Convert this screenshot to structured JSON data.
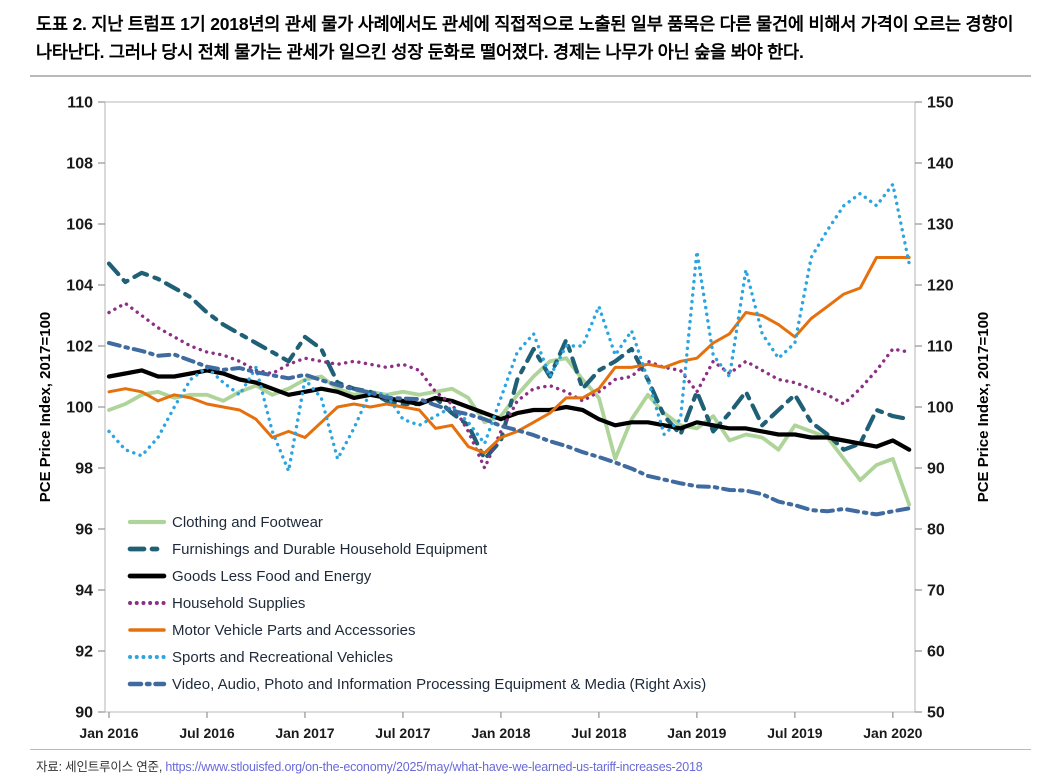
{
  "header": {
    "title": "도표 2. 지난 트럼프 1기 2018년의 관세 물가 사례에서도 관세에 직접적으로 노출된 일부 품목은 다른 물건에 비해서 가격이 오르는 경향이 나타난다. 그러나 당시 전체 물가는 관세가 일으킨 성장 둔화로 떨어졌다. 경제는 나무가 아닌 숲을 봐야 한다."
  },
  "footer": {
    "source_prefix": "자료: 세인트루이스 연준, ",
    "source_url": "https://www.stlouisfed.org/on-the-economy/2025/may/what-have-we-learned-us-tariff-increases-2018"
  },
  "chart_data": {
    "type": "line",
    "title": "",
    "grid": false,
    "legend_position": "inside-bottom-left",
    "left_axis": {
      "label": "PCE Price Index, 2017=100",
      "min": 90,
      "max": 110,
      "tick_step": 2,
      "ticks": [
        90,
        92,
        94,
        96,
        98,
        100,
        102,
        104,
        106,
        108,
        110
      ]
    },
    "right_axis": {
      "label": "PCE Price Index, 2017=100",
      "min": 50,
      "max": 150,
      "tick_step": 10,
      "ticks": [
        50,
        60,
        70,
        80,
        90,
        100,
        110,
        120,
        130,
        140,
        150
      ]
    },
    "x_tick_labels": [
      "Jan 2016",
      "Jul 2016",
      "Jan 2017",
      "Jul 2017",
      "Jan 2018",
      "Jul 2018",
      "Jan 2019",
      "Jul 2019",
      "Jan 2020"
    ],
    "x": [
      "2016-01",
      "2016-02",
      "2016-03",
      "2016-04",
      "2016-05",
      "2016-06",
      "2016-07",
      "2016-08",
      "2016-09",
      "2016-10",
      "2016-11",
      "2016-12",
      "2017-01",
      "2017-02",
      "2017-03",
      "2017-04",
      "2017-05",
      "2017-06",
      "2017-07",
      "2017-08",
      "2017-09",
      "2017-10",
      "2017-11",
      "2017-12",
      "2018-01",
      "2018-02",
      "2018-03",
      "2018-04",
      "2018-05",
      "2018-06",
      "2018-07",
      "2018-08",
      "2018-09",
      "2018-10",
      "2018-11",
      "2018-12",
      "2019-01",
      "2019-02",
      "2019-03",
      "2019-04",
      "2019-05",
      "2019-06",
      "2019-07",
      "2019-08",
      "2019-09",
      "2019-10",
      "2019-11",
      "2019-12",
      "2020-01",
      "2020-02"
    ],
    "series": [
      {
        "name": "Clothing and Footwear",
        "axis": "left",
        "color": "#aed49a",
        "style": "solid",
        "width": 3.8,
        "values": [
          99.9,
          100.1,
          100.4,
          100.5,
          100.3,
          100.4,
          100.4,
          100.2,
          100.5,
          100.7,
          100.4,
          100.6,
          100.9,
          101.0,
          100.6,
          100.4,
          100.5,
          100.4,
          100.5,
          100.4,
          100.5,
          100.6,
          100.3,
          99.5,
          99.7,
          100.4,
          101.0,
          101.5,
          101.6,
          100.9,
          100.3,
          98.3,
          99.6,
          100.4,
          99.8,
          99.4,
          99.3,
          99.7,
          98.9,
          99.1,
          99.0,
          98.6,
          99.4,
          99.2,
          99.0,
          98.3,
          97.6,
          98.1,
          98.3,
          96.8
        ]
      },
      {
        "name": "Furnishings and Durable Household Equipment",
        "axis": "left",
        "color": "#1f6076",
        "style": "long-dash",
        "width": 4.2,
        "values": [
          104.7,
          104.1,
          104.4,
          104.2,
          103.9,
          103.6,
          103.1,
          102.7,
          102.4,
          102.1,
          101.8,
          101.5,
          102.3,
          101.9,
          100.8,
          100.6,
          100.5,
          100.2,
          100.1,
          100.1,
          100.3,
          99.8,
          99.4,
          98.3,
          98.9,
          100.9,
          101.9,
          101.0,
          102.2,
          100.6,
          101.2,
          101.5,
          101.9,
          100.9,
          99.7,
          99.1,
          100.5,
          99.2,
          99.8,
          100.5,
          99.4,
          99.9,
          100.4,
          99.5,
          99.1,
          98.6,
          98.8,
          99.9,
          99.7,
          99.6
        ]
      },
      {
        "name": "Goods Less Food and Energy",
        "axis": "left",
        "color": "#000000",
        "style": "solid",
        "width": 4.2,
        "values": [
          101.0,
          101.1,
          101.2,
          101.0,
          101.0,
          101.1,
          101.2,
          101.1,
          100.9,
          100.8,
          100.6,
          100.4,
          100.5,
          100.6,
          100.5,
          100.3,
          100.4,
          100.3,
          100.2,
          100.1,
          100.3,
          100.2,
          100.0,
          99.8,
          99.6,
          99.8,
          99.9,
          99.9,
          100.0,
          99.9,
          99.6,
          99.4,
          99.5,
          99.5,
          99.4,
          99.3,
          99.5,
          99.4,
          99.3,
          99.3,
          99.2,
          99.1,
          99.1,
          99.0,
          99.0,
          98.9,
          98.8,
          98.7,
          98.9,
          98.6
        ]
      },
      {
        "name": "Household Supplies",
        "axis": "left",
        "color": "#8e2f86",
        "style": "dotted",
        "width": 3.4,
        "values": [
          103.1,
          103.4,
          103.0,
          102.6,
          102.3,
          102.0,
          101.8,
          101.7,
          101.5,
          101.2,
          101.1,
          101.4,
          101.6,
          101.5,
          101.4,
          101.5,
          101.4,
          101.3,
          101.4,
          101.2,
          100.5,
          100.1,
          99.2,
          98.0,
          99.2,
          100.2,
          100.6,
          100.7,
          100.5,
          100.2,
          100.5,
          100.9,
          101.0,
          101.5,
          101.3,
          101.2,
          100.5,
          101.5,
          101.1,
          101.5,
          101.2,
          100.9,
          100.8,
          100.6,
          100.4,
          100.1,
          100.6,
          101.2,
          101.9,
          101.8
        ]
      },
      {
        "name": "Motor Vehicle Parts and Accessories",
        "axis": "left",
        "color": "#e5710e",
        "style": "solid",
        "width": 3.0,
        "values": [
          100.5,
          100.6,
          100.5,
          100.2,
          100.4,
          100.3,
          100.1,
          100.0,
          99.9,
          99.6,
          99.0,
          99.2,
          99.0,
          99.5,
          100.0,
          100.1,
          100.0,
          100.1,
          100.0,
          99.9,
          99.3,
          99.4,
          98.7,
          98.5,
          99.0,
          99.2,
          99.5,
          99.8,
          100.3,
          100.3,
          100.6,
          101.3,
          101.3,
          101.4,
          101.3,
          101.5,
          101.6,
          102.1,
          102.4,
          103.1,
          103.0,
          102.7,
          102.3,
          102.9,
          103.3,
          103.7,
          103.9,
          104.9,
          104.9,
          104.9
        ]
      },
      {
        "name": "Sports and Recreational Vehicles",
        "axis": "left",
        "color": "#2aa5e0",
        "style": "dotted",
        "width": 3.4,
        "values": [
          99.2,
          98.6,
          98.4,
          99.0,
          100.0,
          100.9,
          101.3,
          100.8,
          100.4,
          101.3,
          99.2,
          97.9,
          100.9,
          100.3,
          98.3,
          99.3,
          100.5,
          100.4,
          99.6,
          99.4,
          99.7,
          100.0,
          99.5,
          98.8,
          100.3,
          101.8,
          102.4,
          101.0,
          102.0,
          102.0,
          103.3,
          101.7,
          102.5,
          100.9,
          99.1,
          99.6,
          105.1,
          101.7,
          101.0,
          104.5,
          102.4,
          101.6,
          102.1,
          104.9,
          105.8,
          106.6,
          107.0,
          106.6,
          107.3,
          104.7
        ]
      },
      {
        "name": "Video, Audio, Photo and Information Processing Equipment & Media (Right Axis)",
        "axis": "right",
        "color": "#3f6ba0",
        "style": "dash-dot",
        "width": 4.0,
        "values": [
          110.5,
          109.8,
          109.2,
          108.4,
          108.6,
          107.6,
          106.6,
          106.1,
          106.4,
          105.7,
          105.2,
          104.7,
          105.3,
          104.4,
          103.6,
          102.9,
          102.4,
          101.5,
          101.4,
          101.3,
          100.3,
          99.4,
          98.8,
          98.0,
          96.9,
          96.2,
          95.4,
          94.4,
          93.6,
          92.6,
          91.8,
          90.9,
          89.9,
          88.7,
          88.1,
          87.5,
          87.0,
          86.9,
          86.4,
          86.3,
          85.7,
          84.5,
          83.9,
          83.1,
          82.9,
          83.3,
          82.8,
          82.4,
          82.9,
          83.4
        ]
      }
    ]
  }
}
